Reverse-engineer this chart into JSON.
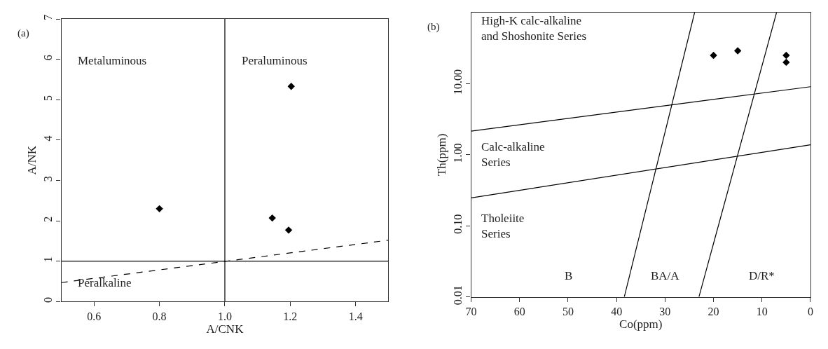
{
  "chart_data": [
    {
      "type": "scatter",
      "title": "(a)",
      "xlabel": "A/CNK",
      "ylabel": "A/NK",
      "xlim": [
        0.5,
        1.5
      ],
      "ylim": [
        0,
        7
      ],
      "xticks": [
        {
          "value": 0.6,
          "label": "0.6"
        },
        {
          "value": 0.8,
          "label": "0.8"
        },
        {
          "value": 1.0,
          "label": "1.0"
        },
        {
          "value": 1.2,
          "label": "1.2"
        },
        {
          "value": 1.4,
          "label": "1.4"
        }
      ],
      "yticks": [
        0,
        1,
        2,
        3,
        4,
        5,
        6,
        7
      ],
      "grid": false,
      "series": [
        {
          "type": "line",
          "color": "#000000",
          "line_style": "solid",
          "x": [
            0.5,
            1.5
          ],
          "values": [
            1,
            1
          ]
        },
        {
          "type": "line",
          "color": "#000000",
          "line_style": "solid",
          "x": [
            1.0,
            1.0
          ],
          "values": [
            0,
            7
          ]
        },
        {
          "color": "#000000",
          "marker": "diamond",
          "x": [
            0.8,
            1.145,
            1.195,
            1.203
          ],
          "values": [
            2.3,
            2.07,
            1.77,
            5.33
          ]
        },
        {
          "type": "line",
          "color": "#000000",
          "line_style": "dashed",
          "x": [
            0.5,
            1.5
          ],
          "values": [
            0.47,
            1.52
          ]
        }
      ],
      "annotations": [
        "Metaluminous",
        "Peraluminous",
        "Peralkaline"
      ]
    },
    {
      "type": "scatter",
      "title": "(b)",
      "xlabel": "Co(ppm)",
      "ylabel": "Th(ppm)",
      "xlim": [
        70,
        0
      ],
      "ylim": [
        0.01,
        100
      ],
      "log": "y",
      "xticks": [
        70,
        60,
        50,
        40,
        30,
        20,
        10,
        0
      ],
      "yticks": [
        {
          "value": 0.01,
          "label": "0.01"
        },
        {
          "value": 0.1,
          "label": "0.10"
        },
        {
          "value": 1,
          "label": "1.00"
        },
        {
          "value": 10,
          "label": "10.00"
        }
      ],
      "grid": false,
      "series": [
        {
          "color": "#000000",
          "marker": "diamond",
          "x": [
            20,
            15,
            5,
            5
          ],
          "values": [
            25,
            29,
            25,
            20
          ]
        },
        {
          "type": "line",
          "color": "#000000",
          "line_style": "solid",
          "x": [
            70,
            0
          ],
          "values": [
            2.15,
            9.06
          ]
        },
        {
          "type": "line",
          "color": "#000000",
          "line_style": "solid",
          "x": [
            70,
            0
          ],
          "values": [
            0.247,
            1.38
          ]
        },
        {
          "type": "line",
          "color": "#000000",
          "line_style": "solid",
          "x": [
            38.4,
            23.9
          ],
          "values": [
            0.01,
            100
          ]
        },
        {
          "type": "line",
          "color": "#000000",
          "line_style": "solid",
          "x": [
            23.0,
            7.0
          ],
          "values": [
            0.01,
            100
          ]
        }
      ],
      "annotations": [
        "High-K calc-alkaline\nand Shoshonite Series",
        "Calc-alkaline\nSeries",
        "Tholeiite\nSeries",
        "B",
        "BA/A",
        "D/R*"
      ]
    }
  ]
}
